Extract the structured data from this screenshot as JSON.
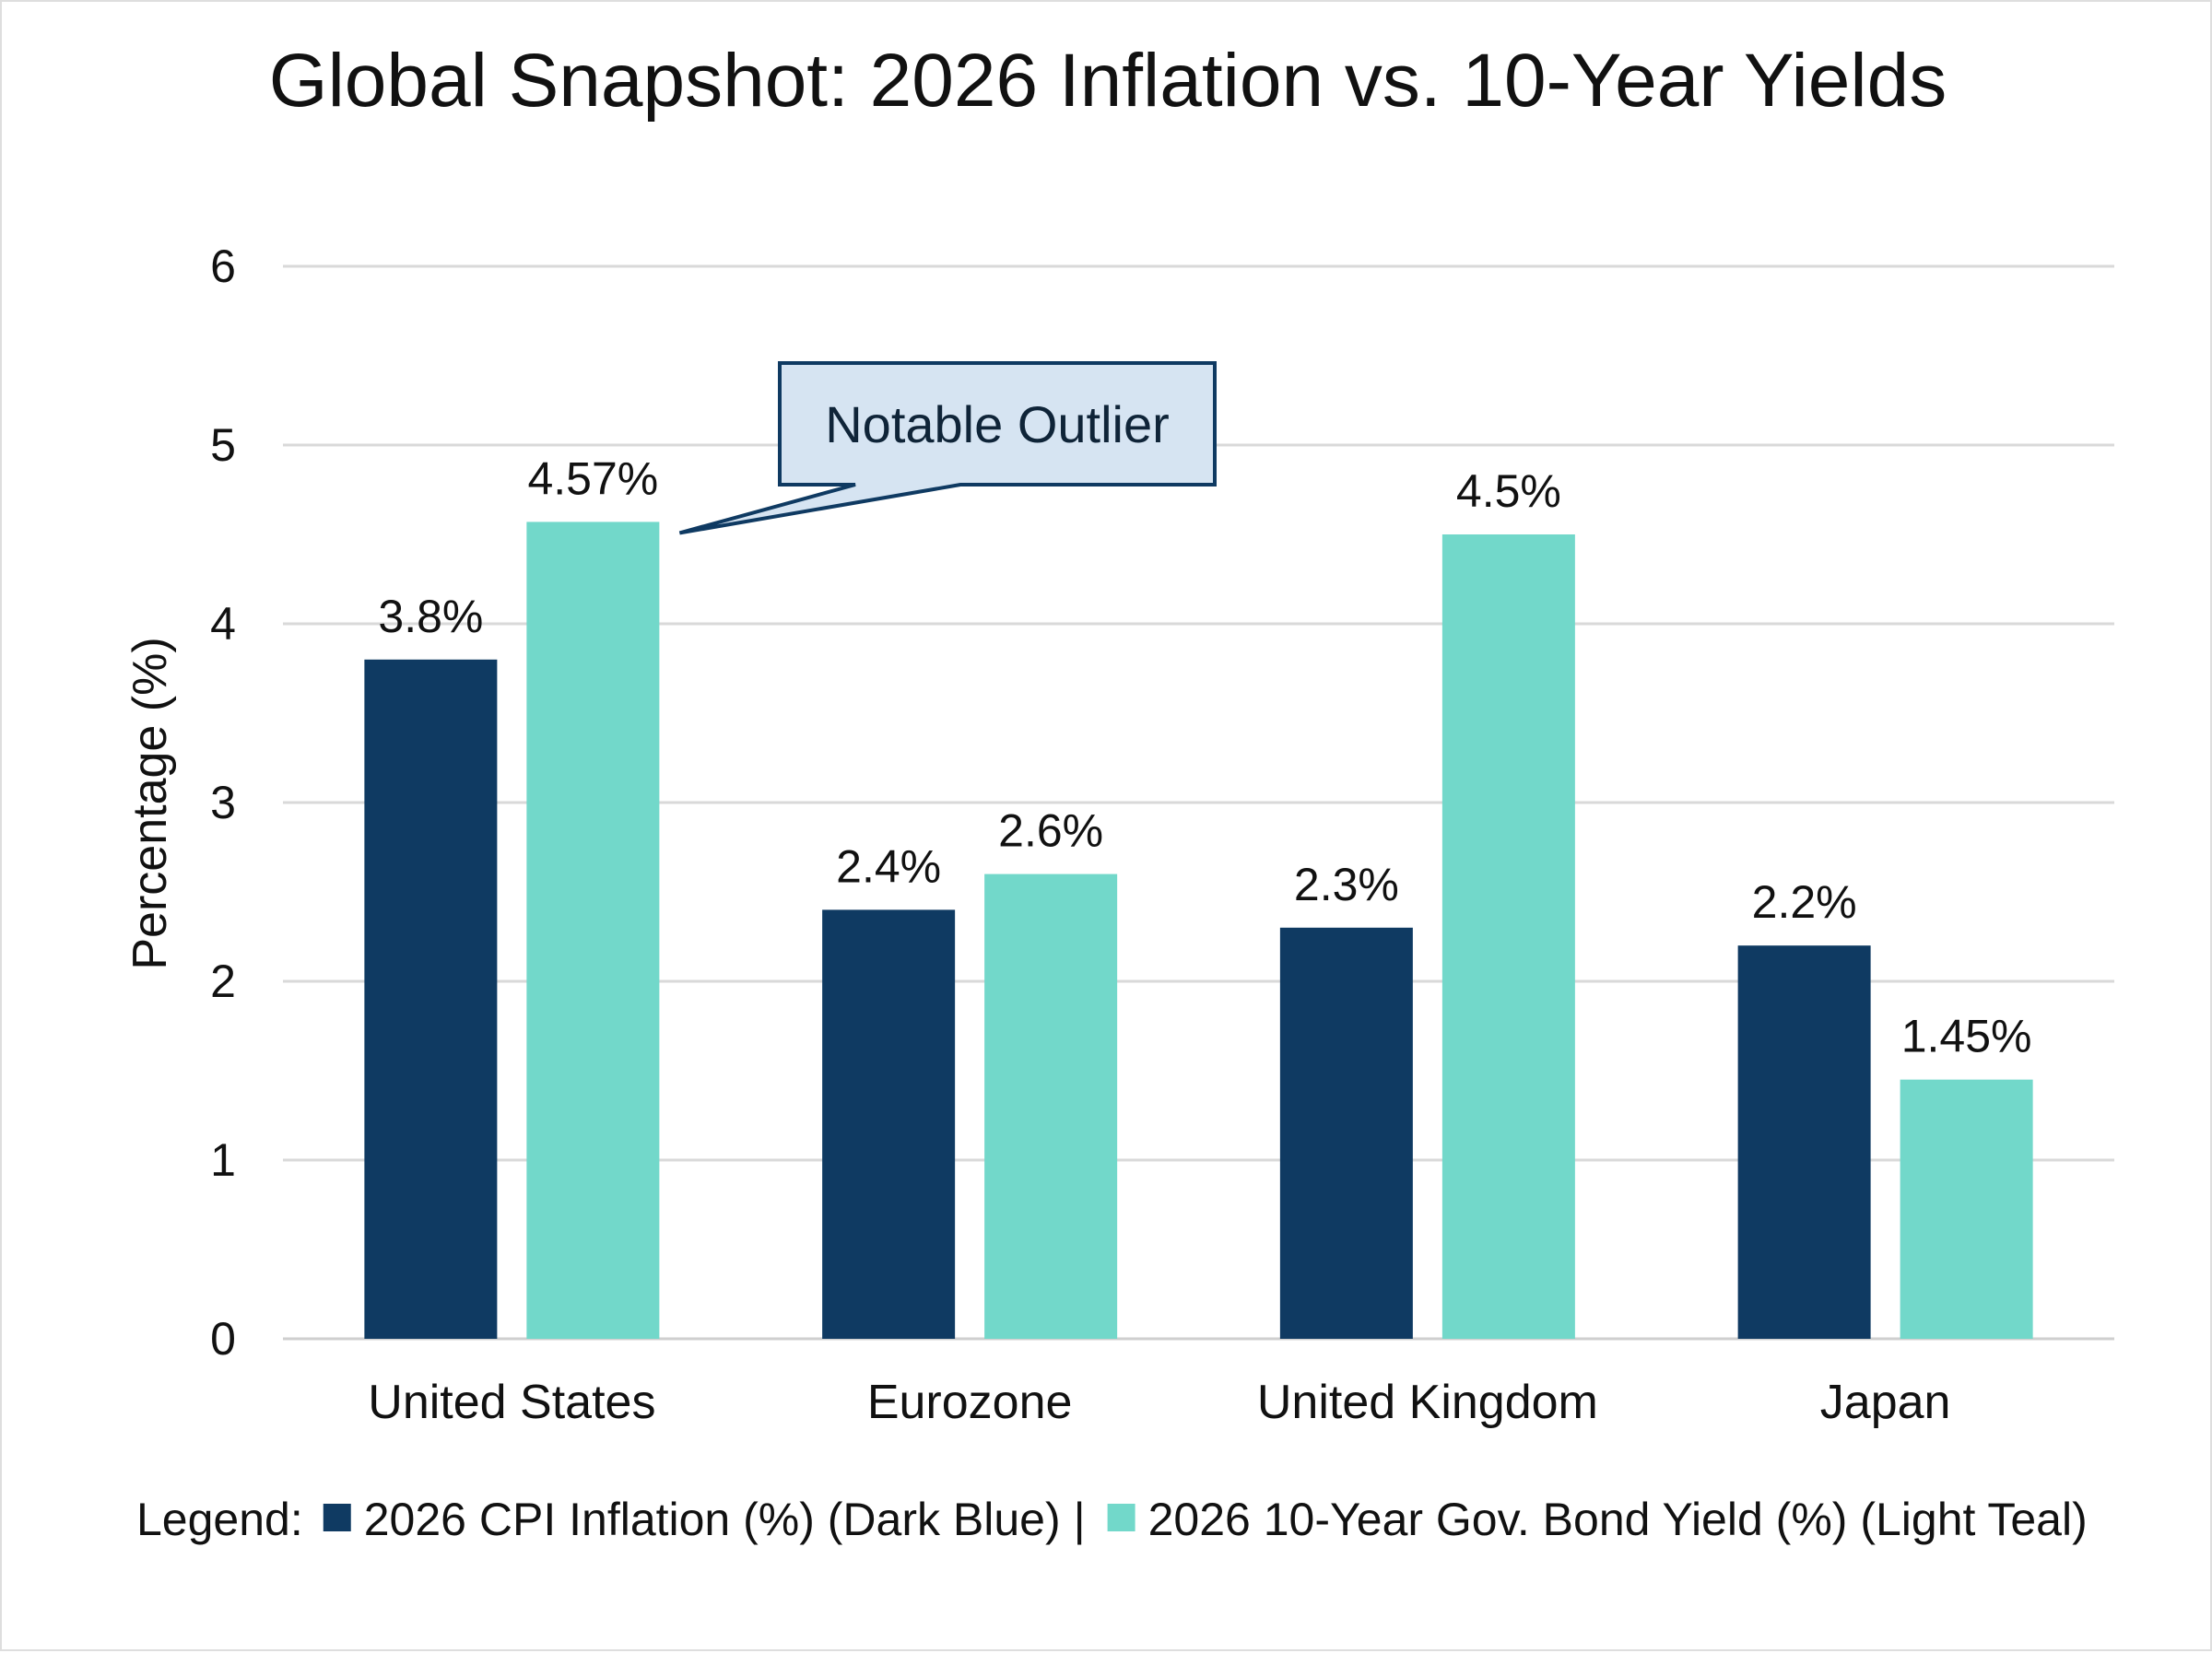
{
  "chart_data": {
    "type": "bar",
    "title": "Global Snapshot: 2026 Inflation vs. 10-Year Yields",
    "ylabel": "Percentage (%)",
    "xlabel": "",
    "ylim": [
      0,
      6
    ],
    "yticks": [
      0,
      1,
      2,
      3,
      4,
      5,
      6
    ],
    "grid": true,
    "categories": [
      "United States",
      "Eurozone",
      "United Kingdom",
      "Japan"
    ],
    "series": [
      {
        "name": "2026 CPI Inflation (%) (Dark Blue)",
        "color": "#0f3a62",
        "values": [
          3.8,
          2.4,
          2.3,
          2.2
        ],
        "labels": [
          "3.8%",
          "2.4%",
          "2.3%",
          "2.2%"
        ]
      },
      {
        "name": "2026 10-Year Gov. Bond Yield (%) (Light Teal)",
        "color": "#72d8ca",
        "values": [
          4.57,
          2.6,
          4.5,
          1.45
        ],
        "labels": [
          "4.57%",
          "2.6%",
          "4.5%",
          "1.45%"
        ]
      }
    ],
    "annotation": {
      "text": "Notable Outlier",
      "target_category": "United States",
      "target_series": 1,
      "fill": "#d6e4f2",
      "border": "#0f3a62"
    },
    "legend": {
      "prefix": "Legend:",
      "separator": "|",
      "placement": "bottom"
    },
    "colors": {
      "grid": "#d9d9d9",
      "axis": "#cfcfcf"
    }
  }
}
